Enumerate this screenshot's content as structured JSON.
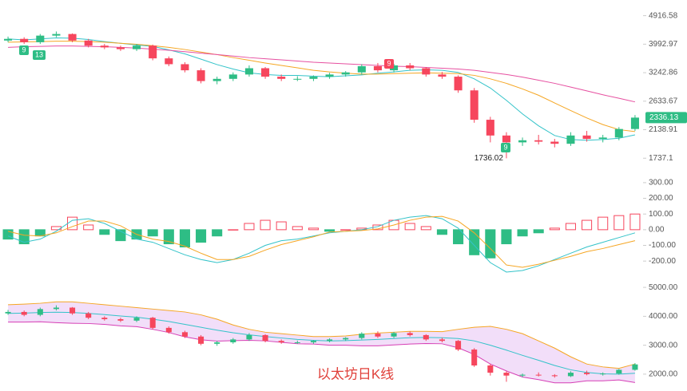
{
  "chart_data": [
    {
      "type": "candlestick",
      "log": true,
      "ylim": [
        1680,
        5200
      ],
      "yticks": [
        4916.58,
        3992.97,
        3242.86,
        2633.67,
        2138.91,
        1737.1
      ],
      "up_color": "#2ebd85",
      "down_color": "#f6465d",
      "open": [
        4100,
        4150,
        4050,
        4250,
        4300,
        4100,
        3950,
        3900,
        3850,
        3950,
        3600,
        3450,
        3300,
        3050,
        3100,
        3200,
        3350,
        3150,
        3100,
        3100,
        3150,
        3200,
        3250,
        3400,
        3300,
        3420,
        3350,
        3200,
        3150,
        2850,
        2300,
        2050,
        1950,
        1980,
        1960,
        1930,
        2050,
        2000,
        2020,
        2150
      ],
      "high": [
        4220,
        4200,
        4300,
        4380,
        4320,
        4150,
        4000,
        3950,
        4000,
        3980,
        3650,
        3500,
        3350,
        3150,
        3250,
        3420,
        3380,
        3200,
        3160,
        3180,
        3240,
        3280,
        3450,
        3480,
        3460,
        3480,
        3380,
        3260,
        3180,
        2900,
        2350,
        2100,
        2020,
        2060,
        2000,
        2100,
        2120,
        2060,
        2180,
        2380
      ],
      "low": [
        4050,
        4000,
        4000,
        4200,
        4050,
        3900,
        3850,
        3800,
        3800,
        3550,
        3400,
        3250,
        3000,
        2980,
        3050,
        3150,
        3100,
        3050,
        3050,
        3050,
        3100,
        3150,
        3200,
        3250,
        3250,
        3300,
        3150,
        3100,
        2800,
        2250,
        1950,
        1736.02,
        1900,
        1920,
        1880,
        1900,
        1960,
        1950,
        1980,
        2120
      ],
      "close": [
        4150,
        4050,
        4250,
        4300,
        4100,
        3950,
        3900,
        3850,
        3950,
        3600,
        3450,
        3300,
        3050,
        3100,
        3200,
        3350,
        3150,
        3100,
        3100,
        3150,
        3200,
        3250,
        3400,
        3300,
        3420,
        3350,
        3200,
        3150,
        2850,
        2300,
        2050,
        1950,
        1980,
        1960,
        1930,
        2050,
        2000,
        2020,
        2150,
        2336.13
      ],
      "series": [
        {
          "color": "#33c3c9",
          "values": [
            4150,
            4120,
            4150,
            4180,
            4170,
            4130,
            4070,
            4020,
            3970,
            3930,
            3830,
            3720,
            3580,
            3440,
            3330,
            3240,
            3200,
            3180,
            3180,
            3160,
            3150,
            3170,
            3190,
            3230,
            3260,
            3300,
            3310,
            3300,
            3250,
            3100,
            2900,
            2650,
            2400,
            2200,
            2050,
            1990,
            1980,
            1990,
            2010,
            2060
          ]
        },
        {
          "color": "#f5a623",
          "values": [
            4050,
            4060,
            4070,
            4080,
            4080,
            4070,
            4050,
            4020,
            3990,
            3950,
            3900,
            3840,
            3770,
            3700,
            3620,
            3550,
            3480,
            3420,
            3360,
            3300,
            3260,
            3230,
            3210,
            3210,
            3220,
            3230,
            3240,
            3230,
            3220,
            3180,
            3100,
            3000,
            2880,
            2750,
            2600,
            2460,
            2330,
            2220,
            2140,
            2110
          ]
        },
        {
          "color": "#e64fa0",
          "values": [
            3900,
            3920,
            3930,
            3940,
            3940,
            3930,
            3920,
            3900,
            3880,
            3850,
            3820,
            3780,
            3740,
            3700,
            3660,
            3620,
            3590,
            3560,
            3530,
            3500,
            3480,
            3460,
            3440,
            3420,
            3400,
            3390,
            3370,
            3350,
            3330,
            3300,
            3250,
            3200,
            3140,
            3070,
            3000,
            2920,
            2840,
            2760,
            2690,
            2620
          ]
        }
      ],
      "annotations": [
        "9",
        "13",
        "9",
        "9"
      ]
    },
    {
      "type": "macd",
      "ylim": [
        -250,
        330
      ],
      "yticks": [
        {
          "value": 300,
          "label": "300.00"
        },
        {
          "value": 200,
          "label": "200.00"
        },
        {
          "value": 100,
          "label": "100.00"
        },
        {
          "value": 0,
          "label": "0.00"
        },
        {
          "value": -100,
          "label": "-100.00"
        },
        {
          "value": -200,
          "label": "-200.00"
        }
      ],
      "up_color": "#f6465d",
      "down_color": "#2ebd85",
      "values": [
        -60,
        -90,
        -40,
        20,
        80,
        30,
        -30,
        -70,
        -60,
        -40,
        -90,
        -110,
        -80,
        -40,
        0,
        40,
        60,
        50,
        20,
        10,
        -10,
        0,
        10,
        30,
        60,
        40,
        20,
        -30,
        -90,
        -160,
        -180,
        -90,
        -40,
        -20,
        10,
        40,
        60,
        80,
        90,
        100
      ],
      "series": [
        {
          "color": "#33c3c9",
          "values": [
            -40,
            -80,
            -60,
            -10,
            60,
            70,
            40,
            -10,
            -60,
            -80,
            -120,
            -160,
            -190,
            -210,
            -190,
            -150,
            -100,
            -70,
            -60,
            -40,
            -20,
            -10,
            0,
            20,
            60,
            80,
            90,
            70,
            10,
            -100,
            -210,
            -270,
            -260,
            -230,
            -190,
            -150,
            -110,
            -80,
            -50,
            -20
          ]
        },
        {
          "color": "#f5a623",
          "values": [
            -10,
            -35,
            -40,
            -20,
            20,
            55,
            55,
            25,
            -30,
            -60,
            -75,
            -105,
            -150,
            -190,
            -190,
            -170,
            -130,
            -95,
            -70,
            -45,
            -15,
            -10,
            -5,
            5,
            30,
            60,
            80,
            85,
            55,
            -20,
            -120,
            -225,
            -240,
            -220,
            -195,
            -170,
            -140,
            -120,
            -95,
            -70
          ]
        }
      ]
    },
    {
      "type": "bollinger",
      "title": "以太坊日K线",
      "ylim": [
        1500,
        5500
      ],
      "yticks": [
        {
          "value": 5000,
          "label": "5000.00"
        },
        {
          "value": 4000,
          "label": "4000.00"
        },
        {
          "value": 3000,
          "label": "3000.00"
        },
        {
          "value": 2000,
          "label": "2000.00"
        }
      ],
      "band_color": "#e9c8f5",
      "series": [
        {
          "color": "#f5a623",
          "values": [
            4400,
            4420,
            4450,
            4500,
            4500,
            4450,
            4400,
            4350,
            4300,
            4250,
            4200,
            4150,
            4050,
            3900,
            3700,
            3550,
            3450,
            3400,
            3350,
            3300,
            3300,
            3320,
            3380,
            3420,
            3450,
            3480,
            3480,
            3470,
            3550,
            3620,
            3650,
            3550,
            3400,
            3150,
            2900,
            2600,
            2350,
            2250,
            2200,
            2350
          ]
        },
        {
          "color": "#33c3c9",
          "values": [
            4100,
            4110,
            4130,
            4140,
            4130,
            4100,
            4060,
            4010,
            3970,
            3900,
            3820,
            3720,
            3620,
            3520,
            3430,
            3360,
            3300,
            3250,
            3200,
            3170,
            3150,
            3160,
            3180,
            3200,
            3230,
            3260,
            3270,
            3260,
            3230,
            3150,
            3000,
            2830,
            2650,
            2480,
            2300,
            2150,
            2060,
            2010,
            2000,
            2030
          ]
        },
        {
          "color": "#d63fb5",
          "values": [
            3800,
            3800,
            3810,
            3780,
            3760,
            3750,
            3720,
            3670,
            3640,
            3550,
            3440,
            3290,
            3190,
            3140,
            3160,
            3170,
            3150,
            3100,
            3050,
            3040,
            3000,
            3000,
            2980,
            2980,
            3010,
            3040,
            3060,
            3050,
            2910,
            2680,
            2350,
            2110,
            1900,
            1810,
            1700,
            1700,
            1770,
            1770,
            1800,
            1710
          ]
        }
      ]
    }
  ]
}
